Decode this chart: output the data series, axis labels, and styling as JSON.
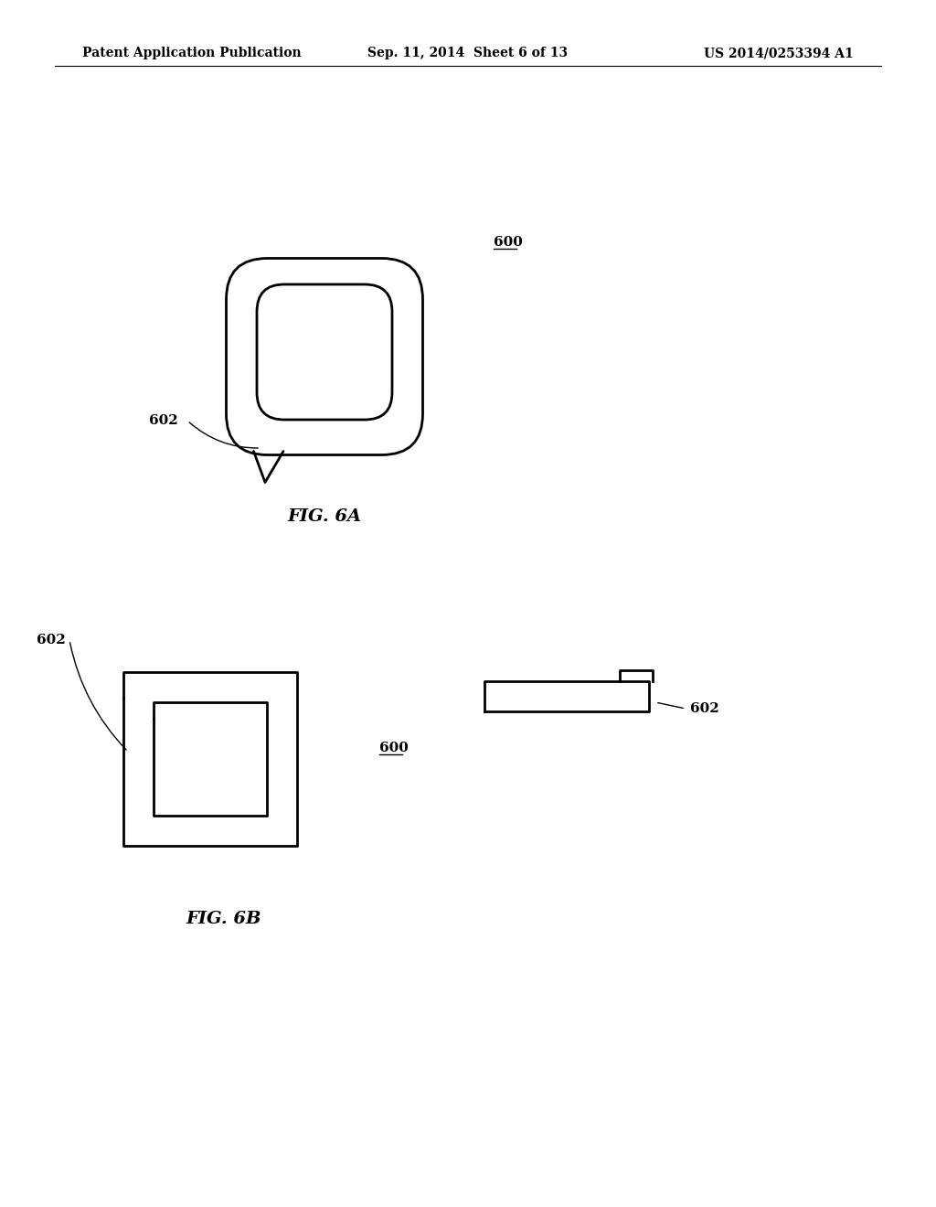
{
  "bg_color": "#ffffff",
  "line_color": "#000000",
  "line_width": 2.0,
  "header_left": "Patent Application Publication",
  "header_mid": "Sep. 11, 2014  Sheet 6 of 13",
  "header_right": "US 2014/0253394 A1",
  "fig6a_label": "FIG. 6A",
  "fig6b_label": "FIG. 6B",
  "label_600": "600",
  "label_602": "602"
}
